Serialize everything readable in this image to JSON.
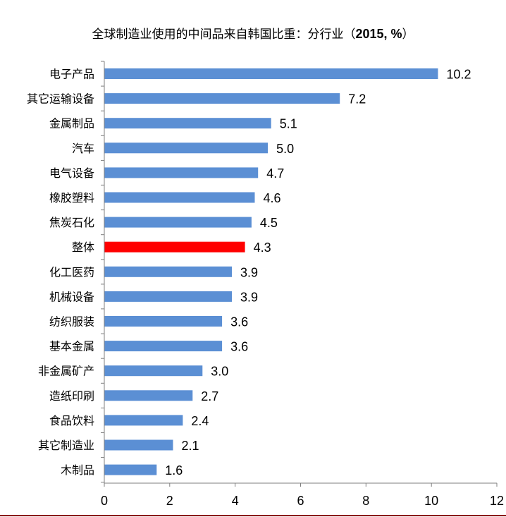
{
  "chart_data": {
    "type": "bar",
    "orientation": "horizontal",
    "title": "全球制造业使用的中间品来自韩国比重：分行业（",
    "title_emphasis": "2015, %",
    "title_close": "）",
    "categories": [
      "电子产品",
      "其它运输设备",
      "金属制品",
      "汽车",
      "电气设备",
      "橡胶塑料",
      "焦炭石化",
      "整体",
      "化工医药",
      "机械设备",
      "纺织服装",
      "基本金属",
      "非金属矿产",
      "造纸印刷",
      "食品饮料",
      "其它制造业",
      "木制品"
    ],
    "values": [
      10.2,
      7.2,
      5.1,
      5.0,
      4.7,
      4.6,
      4.5,
      4.3,
      3.9,
      3.9,
      3.6,
      3.6,
      3.0,
      2.7,
      2.4,
      2.1,
      1.6
    ],
    "value_labels": [
      "10.2",
      "7.2",
      "5.1",
      "5.0",
      "4.7",
      "4.6",
      "4.5",
      "4.3",
      "3.9",
      "3.9",
      "3.6",
      "3.6",
      "3.0",
      "2.7",
      "2.4",
      "2.1",
      "1.6"
    ],
    "highlight_category": "整体",
    "xlim": [
      0,
      12
    ],
    "xticks": [
      "0",
      "2",
      "4",
      "6",
      "8",
      "10",
      "12"
    ],
    "xtick_values": [
      0,
      2,
      4,
      6,
      8,
      10,
      12
    ],
    "xlabel": "",
    "ylabel": "",
    "grid": false,
    "legend": "none",
    "colors": {
      "bar": "#5b8fd4",
      "highlight": "#ff0000",
      "axis": "#7f7f7f",
      "bottom_rule": "#8b1a1a"
    }
  }
}
